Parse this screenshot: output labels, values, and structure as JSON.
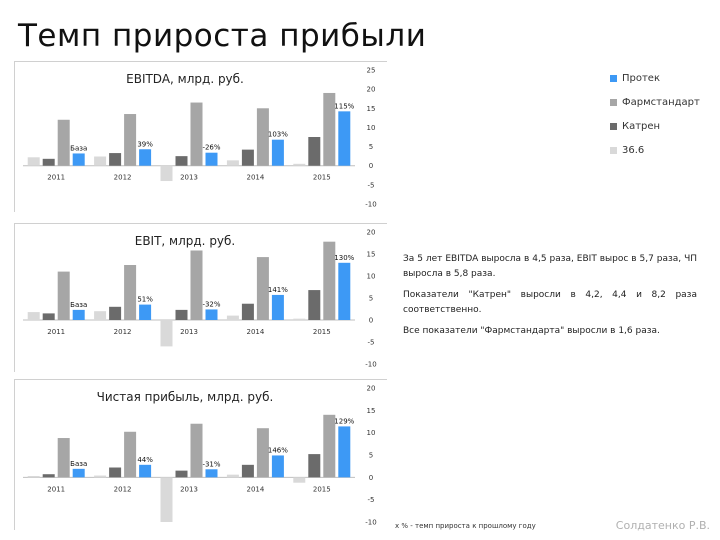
{
  "slide": {
    "title": "Темп прироста прибыли",
    "commentary": [
      "За 5 лет EBITDA выросла в 4,5 раза, EBIT вырос в 5,7 раза, ЧП выросла в 5,8 раза.",
      "Показатели \"Катрен\" выросли в 4,2, 4,4 и 8,2 раза соответственно.",
      "Все показатели \"Фармстандарта\" выросли в 1,6 раза."
    ],
    "footnote": "х % - темп прироста к прошлому году",
    "author": "Солдатенко Р.В."
  },
  "legend": [
    {
      "name": "Протек",
      "color": "#3d99f5"
    },
    {
      "name": "Фармстандарт",
      "color": "#a6a6a6"
    },
    {
      "name": "Катрен",
      "color": "#6b6b6b"
    },
    {
      "name": "36.6",
      "color": "#d9d9d9"
    }
  ],
  "chart_data": [
    {
      "type": "bar",
      "title": "EBITDA, млрд. руб.",
      "categories": [
        "2011",
        "2012",
        "2013",
        "2014",
        "2015"
      ],
      "ylim": [
        -10,
        25
      ],
      "yticks": [
        "25",
        "20",
        "15",
        "10",
        "5",
        "0",
        "-5",
        "-10"
      ],
      "yticks_values": [
        25,
        20,
        15,
        10,
        5,
        0,
        -5,
        -10
      ],
      "grid": false,
      "series": [
        {
          "name": "36.6",
          "color": "#d9d9d9",
          "values": [
            2.2,
            2.4,
            -4,
            1.4,
            0.5
          ]
        },
        {
          "name": "Катрен",
          "color": "#6b6b6b",
          "values": [
            1.8,
            3.3,
            2.5,
            4.2,
            7.5
          ]
        },
        {
          "name": "Фармстандарт",
          "color": "#a6a6a6",
          "values": [
            12,
            13.5,
            16.5,
            15,
            19
          ]
        },
        {
          "name": "Протек",
          "color": "#3d99f5",
          "values": [
            3.2,
            4.3,
            3.4,
            6.8,
            14.2
          ]
        }
      ],
      "data_labels": [
        "База",
        "39%",
        "-26%",
        "103%",
        "115%"
      ]
    },
    {
      "type": "bar",
      "title": "EBIT, млрд. руб.",
      "categories": [
        "2011",
        "2012",
        "2013",
        "2014",
        "2015"
      ],
      "ylim": [
        -10,
        20
      ],
      "yticks": [
        "20",
        "15",
        "10",
        "5",
        "0",
        "-5",
        "-10"
      ],
      "yticks_values": [
        20,
        15,
        10,
        5,
        0,
        -5,
        -10
      ],
      "grid": false,
      "series": [
        {
          "name": "36.6",
          "color": "#d9d9d9",
          "values": [
            1.8,
            2,
            -6,
            1,
            0.3
          ]
        },
        {
          "name": "Катрен",
          "color": "#6b6b6b",
          "values": [
            1.5,
            3,
            2.3,
            3.7,
            6.8
          ]
        },
        {
          "name": "Фармстандарт",
          "color": "#a6a6a6",
          "values": [
            11,
            12.5,
            15.8,
            14.3,
            17.8
          ]
        },
        {
          "name": "Протек",
          "color": "#3d99f5",
          "values": [
            2.3,
            3.5,
            2.4,
            5.7,
            13
          ]
        }
      ],
      "data_labels": [
        "База",
        "51%",
        "-32%",
        "141%",
        "130%"
      ]
    },
    {
      "type": "bar",
      "title": "Чистая прибыль, млрд. руб.",
      "categories": [
        "2011",
        "2012",
        "2013",
        "2014",
        "2015"
      ],
      "ylim": [
        -10,
        20
      ],
      "yticks": [
        "20",
        "15",
        "10",
        "5",
        "0",
        "-5",
        "-10"
      ],
      "yticks_values": [
        20,
        15,
        10,
        5,
        0,
        -5,
        -10
      ],
      "grid": false,
      "series": [
        {
          "name": "36.6",
          "color": "#d9d9d9",
          "values": [
            0.3,
            0.4,
            -10,
            0.6,
            -1.2
          ]
        },
        {
          "name": "Катрен",
          "color": "#6b6b6b",
          "values": [
            0.7,
            2.2,
            1.5,
            2.8,
            5.2
          ]
        },
        {
          "name": "Фармстандарт",
          "color": "#a6a6a6",
          "values": [
            8.8,
            10.2,
            12,
            11,
            14
          ]
        },
        {
          "name": "Протек",
          "color": "#3d99f5",
          "values": [
            1.9,
            2.8,
            1.8,
            4.9,
            11.4
          ]
        }
      ],
      "data_labels": [
        "База",
        "44%",
        "-31%",
        "146%",
        "129%"
      ]
    }
  ]
}
